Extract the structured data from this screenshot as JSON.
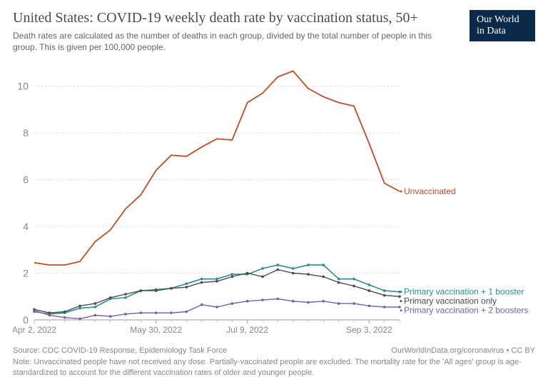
{
  "header": {
    "title": "United States: COVID-19 weekly death rate by vaccination status, 50+",
    "subtitle": "Death rates are calculated as the number of deaths in each group, divided by the total number of people in this group. This is given per 100,000 people.",
    "logo_line1": "Our World",
    "logo_line2": "in Data"
  },
  "chart": {
    "type": "line",
    "background_color": "#ffffff",
    "grid_color": "#d9d9d9",
    "axis_text_color": "#888888",
    "ylim": [
      0,
      11
    ],
    "yticks": [
      0,
      2,
      4,
      6,
      8,
      10
    ],
    "x_count": 25,
    "x_tick_positions": [
      0,
      8,
      14,
      22
    ],
    "x_tick_labels": [
      "Apr 2, 2022",
      "May 30, 2022",
      "Jul 9, 2022",
      "Sep 3, 2022"
    ],
    "series": [
      {
        "name": "Unvaccinated",
        "color": "#c64b2a",
        "label": "Unvaccinated",
        "marker": false,
        "width": 1.8,
        "values": [
          2.45,
          2.35,
          2.35,
          2.5,
          3.35,
          3.85,
          4.75,
          5.35,
          6.4,
          7.05,
          7.0,
          7.4,
          7.75,
          7.7,
          9.3,
          9.7,
          10.4,
          10.65,
          9.9,
          9.55,
          9.3,
          9.15,
          7.55,
          5.85,
          5.5
        ],
        "label_at": 24
      },
      {
        "name": "Primary vaccination + 1 booster",
        "color": "#2f8b8f",
        "label": "Primary vaccination + 1 booster",
        "marker": true,
        "width": 1.6,
        "values": [
          0.35,
          0.25,
          0.3,
          0.5,
          0.55,
          0.9,
          0.95,
          1.25,
          1.3,
          1.35,
          1.55,
          1.75,
          1.75,
          1.95,
          1.95,
          2.2,
          2.35,
          2.2,
          2.35,
          2.35,
          1.75,
          1.75,
          1.5,
          1.25,
          1.2
        ],
        "label_at": 24
      },
      {
        "name": "Primary vaccination only",
        "color": "#4a4a4a",
        "label": "Primary vaccination only",
        "marker": true,
        "width": 1.4,
        "values": [
          0.45,
          0.3,
          0.35,
          0.6,
          0.7,
          0.95,
          1.1,
          1.25,
          1.25,
          1.35,
          1.4,
          1.6,
          1.65,
          1.85,
          2.0,
          1.85,
          2.15,
          2.0,
          1.95,
          1.85,
          1.6,
          1.45,
          1.25,
          1.05,
          1.0
        ],
        "label_at": 24
      },
      {
        "name": "Primary vaccination + 2 boosters",
        "color": "#7a5fa8",
        "label": "Primary vaccination + 2 boosters",
        "marker": true,
        "width": 1.4,
        "values": [
          0.4,
          0.2,
          0.1,
          0.05,
          0.2,
          0.15,
          0.25,
          0.3,
          0.3,
          0.3,
          0.35,
          0.65,
          0.55,
          0.7,
          0.8,
          0.85,
          0.9,
          0.8,
          0.75,
          0.8,
          0.7,
          0.7,
          0.6,
          0.55,
          0.55
        ],
        "label_at": 24
      }
    ],
    "tick_len": 5
  },
  "footer": {
    "source": "Source: CDC COVID-19 Response, Epidemiology Task Force",
    "attribution": "OurWorldInData.org/coronavirus • CC BY",
    "note": "Note: Unvaccinated people have not received any dose. Partially-vaccinated people are excluded. The mortality rate for the 'All ages' group is age-standardized to account for the different vaccination rates of older and younger people."
  }
}
